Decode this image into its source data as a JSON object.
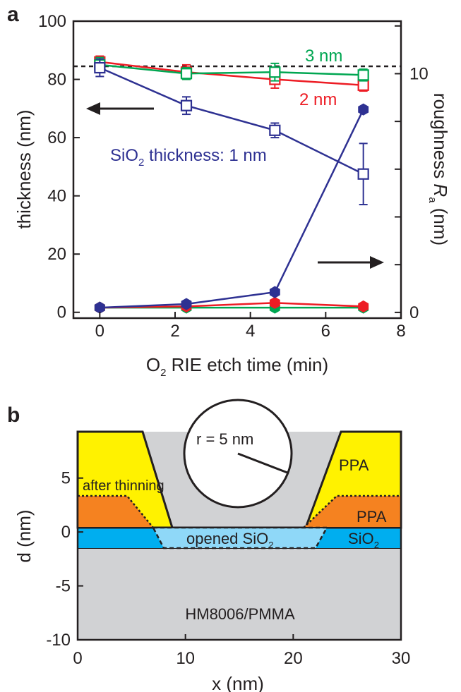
{
  "chart_data": [
    {
      "panel": "a",
      "type": "line",
      "xlabel_pre": "O",
      "xlabel_sub": "2",
      "xlabel_post": " RIE etch time (min)",
      "ylabel": "thickness (nm)",
      "y2label_pre": "roughness ",
      "y2label_italic": "R",
      "y2label_sub": "a",
      "y2label_post": " (nm)",
      "xlim": [
        -0.7,
        8
      ],
      "ylim": [
        -2,
        100
      ],
      "y2lim": [
        -0.24,
        12.2
      ],
      "xticks": [
        0,
        2,
        4,
        6,
        8
      ],
      "yticks": [
        0,
        20,
        40,
        60,
        80,
        100
      ],
      "y2ticks_labeled": [
        0,
        10
      ],
      "reference_line": {
        "y": 84.5,
        "style": "dashed",
        "color": "#231f20"
      },
      "x": [
        0,
        2.3,
        4.65,
        7
      ],
      "series": [
        {
          "name": "3 nm",
          "label": "3 nm",
          "color": "#00a651",
          "axis": "left",
          "marker": "open-square",
          "values": [
            85,
            82,
            82.5,
            81.5
          ],
          "errors": [
            2.5,
            2,
            3,
            2
          ]
        },
        {
          "name": "2 nm",
          "label": "2 nm",
          "color": "#ed1c24",
          "axis": "left",
          "marker": "open-square",
          "values": [
            86,
            82.5,
            80,
            78
          ],
          "errors": [
            2,
            2.5,
            3,
            2
          ]
        },
        {
          "name": "SiO2 thickness: 1 nm",
          "label_pre": "SiO",
          "label_sub": "2",
          "label_post": " thickness: 1 nm",
          "color": "#2e3192",
          "axis": "left",
          "marker": "open-square",
          "values": [
            84,
            71,
            62.5,
            47.5
          ],
          "errors": [
            3,
            3,
            2.5,
            10.5
          ]
        },
        {
          "name": "3 nm roughness",
          "color": "#00a651",
          "axis": "right",
          "marker": "filled-hexagon",
          "values": [
            0.2,
            0.2,
            0.2,
            0.2
          ]
        },
        {
          "name": "2 nm roughness",
          "color": "#ed1c24",
          "axis": "right",
          "marker": "filled-hexagon",
          "values": [
            0.2,
            0.25,
            0.4,
            0.25
          ]
        },
        {
          "name": "1 nm roughness",
          "color": "#2e3192",
          "axis": "right",
          "marker": "filled-hexagon",
          "values": [
            0.2,
            0.35,
            0.85,
            8.5
          ]
        }
      ]
    },
    {
      "panel": "b",
      "type": "diagram",
      "xlabel": "x (nm)",
      "ylabel": "d (nm)",
      "xlim": [
        0,
        30
      ],
      "ylim": [
        -10,
        9.3
      ],
      "xticks": [
        0,
        10,
        20,
        30
      ],
      "yticks": [
        -10,
        -5,
        0,
        5
      ],
      "layers": {
        "substrate": {
          "label": "HM8006/PMMA",
          "color": "#d1d2d4",
          "y_top": -2,
          "y_bottom": -10
        },
        "sio2": {
          "label_pre": "SiO",
          "label_sub": "2",
          "color": "#00aeef",
          "y_top": 0,
          "y_bottom": -2
        },
        "opened_sio2": {
          "label_pre": "opened SiO",
          "label_sub": "2",
          "color": "#8fd8f8",
          "x_top_left": 7,
          "x_top_right": 22.3,
          "x_bottom_left": 8,
          "x_bottom_right": 21.3
        },
        "ppa_thinned": {
          "label": "PPA",
          "color": "#f58220",
          "y_top": 3,
          "x_top_left": 6,
          "x_bottom_left": 7,
          "x_top_right": 24,
          "x_bottom_right": 21
        },
        "ppa": {
          "label": "PPA",
          "color": "#fff200",
          "y_top": 9.3,
          "x_top_left": 6,
          "x_bottom_left": 8.8,
          "x_bottom_right": 21.2,
          "x_top_right": 24.5
        }
      },
      "after_thinning_label": "after thinning",
      "circle": {
        "center_x": 15,
        "center_y": 7,
        "radius": 5,
        "label": "r =  5 nm"
      }
    }
  ],
  "panel_labels": {
    "a": "a",
    "b": "b"
  }
}
